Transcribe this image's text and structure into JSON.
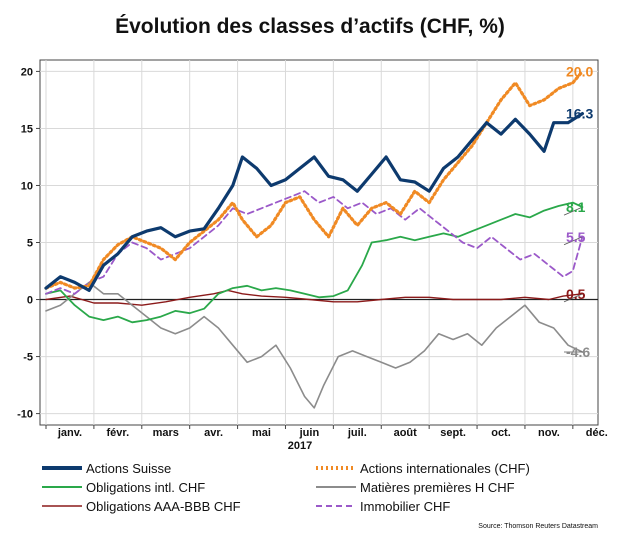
{
  "chart_data": {
    "type": "line",
    "title": "Évolution des classes d’actifs (CHF, %)",
    "xlabel": "2017",
    "ylabel": "",
    "ylim": [
      -11,
      21
    ],
    "y_ticks": [
      "-10",
      "-5",
      "0",
      "5",
      "10",
      "15",
      "20"
    ],
    "y_tick_values": [
      -10,
      -5,
      0,
      5,
      10,
      15,
      20
    ],
    "x_ticks": [
      "janv.",
      "févr.",
      "mars",
      "avr.",
      "mai",
      "juin",
      "juil.",
      "août",
      "sept.",
      "oct.",
      "nov.",
      "déc."
    ],
    "x_range": [
      0,
      11.4
    ],
    "grid": true,
    "legend_position": "bottom",
    "source": "Source: Thomson Reuters Datastream",
    "series": [
      {
        "name": "Actions Suisse",
        "color": "#0d3a6e",
        "style": "solid",
        "end_label": "16.3",
        "points": [
          [
            0,
            1.0
          ],
          [
            0.3,
            2.0
          ],
          [
            0.6,
            1.5
          ],
          [
            0.9,
            0.8
          ],
          [
            1.2,
            3.0
          ],
          [
            1.5,
            4.0
          ],
          [
            1.8,
            5.5
          ],
          [
            2.1,
            6.0
          ],
          [
            2.4,
            6.3
          ],
          [
            2.7,
            5.5
          ],
          [
            3.0,
            6.0
          ],
          [
            3.3,
            6.2
          ],
          [
            3.6,
            8.0
          ],
          [
            3.9,
            10.0
          ],
          [
            4.1,
            12.5
          ],
          [
            4.4,
            11.5
          ],
          [
            4.7,
            10.0
          ],
          [
            5.0,
            10.5
          ],
          [
            5.3,
            11.5
          ],
          [
            5.6,
            12.5
          ],
          [
            5.9,
            10.8
          ],
          [
            6.2,
            10.5
          ],
          [
            6.5,
            9.5
          ],
          [
            6.8,
            11.0
          ],
          [
            7.1,
            12.5
          ],
          [
            7.4,
            10.5
          ],
          [
            7.7,
            10.3
          ],
          [
            8.0,
            9.5
          ],
          [
            8.3,
            11.5
          ],
          [
            8.6,
            12.5
          ],
          [
            8.9,
            14.0
          ],
          [
            9.2,
            15.5
          ],
          [
            9.5,
            14.5
          ],
          [
            9.8,
            15.8
          ],
          [
            10.1,
            14.5
          ],
          [
            10.4,
            13.0
          ],
          [
            10.6,
            15.5
          ],
          [
            10.9,
            15.5
          ],
          [
            11.2,
            16.3
          ]
        ]
      },
      {
        "name": "Actions internationales (CHF)",
        "color": "#f08a24",
        "style": "dotted",
        "end_label": "20.0",
        "points": [
          [
            0,
            1.0
          ],
          [
            0.3,
            1.5
          ],
          [
            0.6,
            1.0
          ],
          [
            0.9,
            1.2
          ],
          [
            1.2,
            3.5
          ],
          [
            1.5,
            4.8
          ],
          [
            1.8,
            5.5
          ],
          [
            2.1,
            5.0
          ],
          [
            2.4,
            4.5
          ],
          [
            2.7,
            3.5
          ],
          [
            3.0,
            5.0
          ],
          [
            3.3,
            6.0
          ],
          [
            3.6,
            7.0
          ],
          [
            3.9,
            8.5
          ],
          [
            4.1,
            7.0
          ],
          [
            4.4,
            5.5
          ],
          [
            4.7,
            6.5
          ],
          [
            5.0,
            8.5
          ],
          [
            5.3,
            9.0
          ],
          [
            5.6,
            7.0
          ],
          [
            5.9,
            5.5
          ],
          [
            6.2,
            8.0
          ],
          [
            6.5,
            6.5
          ],
          [
            6.8,
            8.0
          ],
          [
            7.1,
            8.5
          ],
          [
            7.4,
            7.5
          ],
          [
            7.7,
            9.5
          ],
          [
            8.0,
            8.5
          ],
          [
            8.3,
            10.5
          ],
          [
            8.6,
            12.0
          ],
          [
            8.9,
            13.5
          ],
          [
            9.2,
            15.5
          ],
          [
            9.5,
            17.5
          ],
          [
            9.8,
            19.0
          ],
          [
            10.1,
            17.0
          ],
          [
            10.4,
            17.5
          ],
          [
            10.7,
            18.5
          ],
          [
            11.0,
            19.0
          ],
          [
            11.2,
            20.0
          ]
        ]
      },
      {
        "name": "Obligations intl. CHF",
        "color": "#2aa84a",
        "style": "solid",
        "end_label": "8.1",
        "points": [
          [
            0,
            0.5
          ],
          [
            0.3,
            0.8
          ],
          [
            0.6,
            -0.5
          ],
          [
            0.9,
            -1.5
          ],
          [
            1.2,
            -1.8
          ],
          [
            1.5,
            -1.5
          ],
          [
            1.8,
            -2.0
          ],
          [
            2.1,
            -1.8
          ],
          [
            2.4,
            -1.5
          ],
          [
            2.7,
            -1.0
          ],
          [
            3.0,
            -1.2
          ],
          [
            3.3,
            -0.8
          ],
          [
            3.6,
            0.5
          ],
          [
            3.9,
            1.0
          ],
          [
            4.2,
            1.2
          ],
          [
            4.5,
            0.8
          ],
          [
            4.8,
            1.0
          ],
          [
            5.1,
            0.8
          ],
          [
            5.4,
            0.5
          ],
          [
            5.7,
            0.2
          ],
          [
            6.0,
            0.3
          ],
          [
            6.3,
            0.8
          ],
          [
            6.6,
            3.0
          ],
          [
            6.8,
            5.0
          ],
          [
            7.1,
            5.2
          ],
          [
            7.4,
            5.5
          ],
          [
            7.7,
            5.2
          ],
          [
            8.0,
            5.5
          ],
          [
            8.3,
            5.8
          ],
          [
            8.6,
            5.5
          ],
          [
            8.9,
            6.0
          ],
          [
            9.2,
            6.5
          ],
          [
            9.5,
            7.0
          ],
          [
            9.8,
            7.5
          ],
          [
            10.1,
            7.2
          ],
          [
            10.4,
            7.8
          ],
          [
            10.7,
            8.2
          ],
          [
            11.0,
            8.5
          ],
          [
            11.2,
            8.1
          ]
        ]
      },
      {
        "name": "Matières premières H CHF",
        "color": "#8c8c8c",
        "style": "solid",
        "end_label": "-4.6",
        "points": [
          [
            0,
            -1.0
          ],
          [
            0.3,
            -0.5
          ],
          [
            0.6,
            0.5
          ],
          [
            0.9,
            1.5
          ],
          [
            1.2,
            0.5
          ],
          [
            1.5,
            0.5
          ],
          [
            1.8,
            -0.5
          ],
          [
            2.1,
            -1.5
          ],
          [
            2.4,
            -2.5
          ],
          [
            2.7,
            -3.0
          ],
          [
            3.0,
            -2.5
          ],
          [
            3.3,
            -1.5
          ],
          [
            3.6,
            -2.5
          ],
          [
            3.9,
            -4.0
          ],
          [
            4.2,
            -5.5
          ],
          [
            4.5,
            -5.0
          ],
          [
            4.8,
            -4.0
          ],
          [
            5.1,
            -6.0
          ],
          [
            5.4,
            -8.5
          ],
          [
            5.6,
            -9.5
          ],
          [
            5.8,
            -7.5
          ],
          [
            6.1,
            -5.0
          ],
          [
            6.4,
            -4.5
          ],
          [
            6.7,
            -5.0
          ],
          [
            7.0,
            -5.5
          ],
          [
            7.3,
            -6.0
          ],
          [
            7.6,
            -5.5
          ],
          [
            7.9,
            -4.5
          ],
          [
            8.2,
            -3.0
          ],
          [
            8.5,
            -3.5
          ],
          [
            8.8,
            -3.0
          ],
          [
            9.1,
            -4.0
          ],
          [
            9.4,
            -2.5
          ],
          [
            9.7,
            -1.5
          ],
          [
            10.0,
            -0.5
          ],
          [
            10.3,
            -2.0
          ],
          [
            10.6,
            -2.5
          ],
          [
            10.9,
            -4.0
          ],
          [
            11.2,
            -4.6
          ]
        ]
      },
      {
        "name": "Obligations AAA-BBB CHF",
        "color": "#8b1a1a",
        "style": "solid",
        "end_label": "0.5",
        "points": [
          [
            0,
            0.0
          ],
          [
            0.5,
            0.3
          ],
          [
            1.0,
            -0.3
          ],
          [
            1.5,
            -0.3
          ],
          [
            2.0,
            -0.5
          ],
          [
            2.5,
            -0.2
          ],
          [
            3.0,
            0.2
          ],
          [
            3.5,
            0.5
          ],
          [
            3.8,
            0.8
          ],
          [
            4.1,
            0.5
          ],
          [
            4.5,
            0.3
          ],
          [
            5.0,
            0.2
          ],
          [
            5.5,
            0.0
          ],
          [
            6.0,
            -0.2
          ],
          [
            6.5,
            -0.2
          ],
          [
            7.0,
            0.0
          ],
          [
            7.5,
            0.2
          ],
          [
            8.0,
            0.2
          ],
          [
            8.5,
            0.0
          ],
          [
            9.0,
            0.0
          ],
          [
            9.5,
            0.0
          ],
          [
            10.0,
            0.2
          ],
          [
            10.5,
            0.0
          ],
          [
            10.8,
            0.3
          ],
          [
            11.2,
            0.5
          ]
        ]
      },
      {
        "name": "Immobilier CHF",
        "color": "#9b59c9",
        "style": "dashed",
        "end_label": "5.5",
        "points": [
          [
            0,
            0.5
          ],
          [
            0.3,
            1.0
          ],
          [
            0.6,
            0.5
          ],
          [
            0.9,
            1.5
          ],
          [
            1.2,
            2.0
          ],
          [
            1.5,
            4.0
          ],
          [
            1.8,
            5.0
          ],
          [
            2.1,
            4.5
          ],
          [
            2.4,
            3.5
          ],
          [
            2.7,
            4.0
          ],
          [
            3.0,
            4.5
          ],
          [
            3.3,
            5.5
          ],
          [
            3.6,
            6.5
          ],
          [
            3.9,
            8.0
          ],
          [
            4.2,
            7.5
          ],
          [
            4.5,
            8.0
          ],
          [
            4.8,
            8.5
          ],
          [
            5.1,
            9.0
          ],
          [
            5.4,
            9.5
          ],
          [
            5.7,
            8.5
          ],
          [
            6.0,
            9.0
          ],
          [
            6.3,
            8.0
          ],
          [
            6.6,
            8.5
          ],
          [
            6.9,
            7.5
          ],
          [
            7.2,
            8.0
          ],
          [
            7.5,
            7.0
          ],
          [
            7.8,
            8.0
          ],
          [
            8.1,
            7.0
          ],
          [
            8.4,
            6.0
          ],
          [
            8.7,
            5.0
          ],
          [
            9.0,
            4.5
          ],
          [
            9.3,
            5.5
          ],
          [
            9.6,
            4.5
          ],
          [
            9.9,
            3.5
          ],
          [
            10.2,
            4.0
          ],
          [
            10.5,
            3.0
          ],
          [
            10.8,
            2.0
          ],
          [
            11.0,
            2.5
          ],
          [
            11.2,
            5.5
          ]
        ]
      }
    ]
  }
}
